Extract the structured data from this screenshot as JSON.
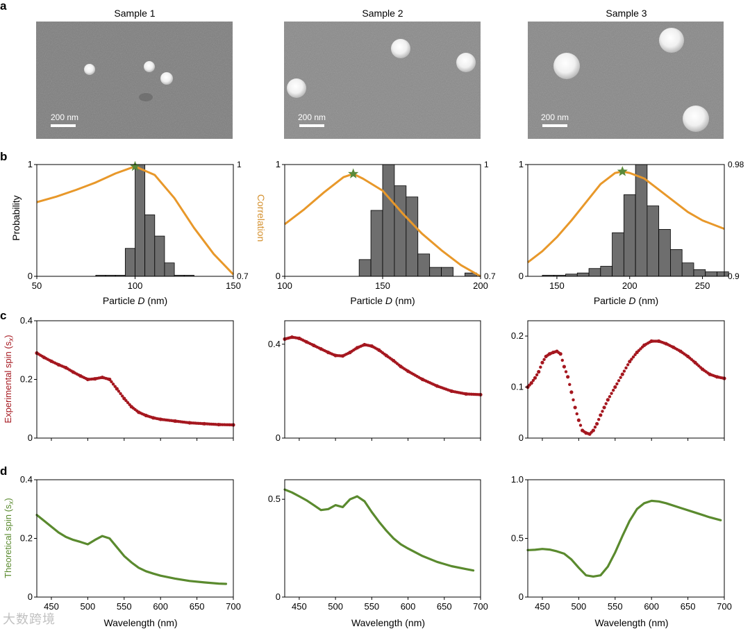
{
  "figure": {
    "panel_labels": [
      "a",
      "b",
      "c",
      "d"
    ],
    "samples": [
      "Sample 1",
      "Sample 2",
      "Sample 3"
    ],
    "scale_bar": "200 nm",
    "b_ylabel_left": "Probability",
    "b_ylabel_right": "Correlation",
    "b_xlabel_pre": "Particle ",
    "b_xlabel_var": "D",
    "b_xlabel_post": " (nm)",
    "c_ylabel": "Experimental spin (s",
    "d_ylabel": "Theoretical spin (s",
    "spin_sub": "x",
    "spin_close": ")",
    "wl_xlabel": "Wavelength (nm)",
    "watermark": "大数跨境"
  },
  "colors": {
    "orange": "#E8982A",
    "bar_fill": "#6E6E6E",
    "star": "#5A8A3A",
    "red": "#A5171F",
    "green": "#5A8A2E",
    "sem_bg": "#7E7E7E",
    "correlation_label": "#D4902E"
  },
  "chart_data": [
    {
      "type": "bar",
      "panel": "b",
      "sample": "Sample 1",
      "xlim": [
        50,
        150
      ],
      "ylim": [
        0,
        1
      ],
      "xticks": [
        50,
        100,
        150
      ],
      "yticks": [
        0,
        1
      ],
      "right_ticks": [
        "0.7",
        "1"
      ],
      "right_lim": [
        0.7,
        1.0
      ],
      "bin_width": 5,
      "bins": [
        [
          80,
          0.01
        ],
        [
          85,
          0.01
        ],
        [
          90,
          0.01
        ],
        [
          95,
          0.25
        ],
        [
          100,
          1.0
        ],
        [
          105,
          0.55
        ],
        [
          110,
          0.36
        ],
        [
          115,
          0.12
        ],
        [
          120,
          0.01
        ],
        [
          125,
          0.01
        ]
      ],
      "correlation": [
        [
          50,
          0.899
        ],
        [
          60,
          0.914
        ],
        [
          70,
          0.932
        ],
        [
          80,
          0.952
        ],
        [
          90,
          0.976
        ],
        [
          100,
          0.995
        ],
        [
          110,
          0.972
        ],
        [
          120,
          0.91
        ],
        [
          130,
          0.83
        ],
        [
          140,
          0.76
        ],
        [
          150,
          0.705
        ]
      ],
      "star": [
        100,
        0.995
      ]
    },
    {
      "type": "bar",
      "panel": "b",
      "sample": "Sample 2",
      "xlim": [
        100,
        200
      ],
      "ylim": [
        0,
        1
      ],
      "xticks": [
        100,
        150,
        200
      ],
      "yticks": [
        0,
        1
      ],
      "right_ticks": [
        "0.7",
        "1"
      ],
      "right_lim": [
        0.7,
        1.0
      ],
      "bin_width": 6,
      "bins": [
        [
          138,
          0.15
        ],
        [
          144,
          0.59
        ],
        [
          150,
          1.0
        ],
        [
          156,
          0.81
        ],
        [
          162,
          0.71
        ],
        [
          168,
          0.2
        ],
        [
          174,
          0.08
        ],
        [
          180,
          0.08
        ],
        [
          186,
          0.0
        ],
        [
          192,
          0.03
        ]
      ],
      "correlation": [
        [
          100,
          0.84
        ],
        [
          110,
          0.88
        ],
        [
          120,
          0.925
        ],
        [
          130,
          0.966
        ],
        [
          135,
          0.975
        ],
        [
          140,
          0.962
        ],
        [
          150,
          0.93
        ],
        [
          160,
          0.87
        ],
        [
          170,
          0.815
        ],
        [
          180,
          0.77
        ],
        [
          190,
          0.73
        ],
        [
          200,
          0.7
        ]
      ],
      "star": [
        135,
        0.975
      ]
    },
    {
      "type": "bar",
      "panel": "b",
      "sample": "Sample 3",
      "xlim": [
        130,
        265
      ],
      "ylim": [
        0,
        1
      ],
      "xticks": [
        150,
        200,
        250
      ],
      "yticks": [
        0,
        1
      ],
      "right_ticks": [
        "0.9",
        "0.98"
      ],
      "right_lim": [
        0.9,
        0.98
      ],
      "bin_width": 8,
      "bins": [
        [
          140,
          0.01
        ],
        [
          148,
          0.01
        ],
        [
          156,
          0.02
        ],
        [
          164,
          0.03
        ],
        [
          172,
          0.07
        ],
        [
          180,
          0.09
        ],
        [
          188,
          0.39
        ],
        [
          196,
          0.73
        ],
        [
          204,
          1.0
        ],
        [
          212,
          0.63
        ],
        [
          220,
          0.42
        ],
        [
          228,
          0.24
        ],
        [
          236,
          0.12
        ],
        [
          244,
          0.06
        ],
        [
          252,
          0.04
        ],
        [
          260,
          0.04
        ]
      ],
      "correlation": [
        [
          130,
          0.91
        ],
        [
          140,
          0.918
        ],
        [
          150,
          0.928
        ],
        [
          160,
          0.94
        ],
        [
          170,
          0.953
        ],
        [
          180,
          0.966
        ],
        [
          190,
          0.974
        ],
        [
          195,
          0.975
        ],
        [
          200,
          0.974
        ],
        [
          210,
          0.97
        ],
        [
          220,
          0.962
        ],
        [
          230,
          0.954
        ],
        [
          240,
          0.946
        ],
        [
          250,
          0.94
        ],
        [
          265,
          0.934
        ]
      ],
      "star": [
        195,
        0.975
      ]
    },
    {
      "type": "scatter",
      "panel": "c",
      "sample": "Sample 1",
      "xlim": [
        430,
        700
      ],
      "ylim": [
        0,
        0.4
      ],
      "yticks": [
        0,
        0.2,
        0.4
      ],
      "ytick_labels": [
        "0",
        "0.2",
        "0.4"
      ],
      "points": [
        [
          430,
          0.29
        ],
        [
          440,
          0.275
        ],
        [
          450,
          0.262
        ],
        [
          460,
          0.25
        ],
        [
          470,
          0.24
        ],
        [
          480,
          0.225
        ],
        [
          490,
          0.212
        ],
        [
          500,
          0.2
        ],
        [
          510,
          0.202
        ],
        [
          520,
          0.207
        ],
        [
          530,
          0.2
        ],
        [
          540,
          0.168
        ],
        [
          550,
          0.135
        ],
        [
          560,
          0.107
        ],
        [
          570,
          0.088
        ],
        [
          580,
          0.077
        ],
        [
          590,
          0.069
        ],
        [
          600,
          0.064
        ],
        [
          620,
          0.058
        ],
        [
          640,
          0.052
        ],
        [
          660,
          0.049
        ],
        [
          680,
          0.046
        ],
        [
          700,
          0.045
        ]
      ]
    },
    {
      "type": "scatter",
      "panel": "c",
      "sample": "Sample 2",
      "xlim": [
        430,
        700
      ],
      "ylim": [
        0,
        0.5
      ],
      "yticks": [
        0,
        0.4
      ],
      "ytick_labels": [
        "0",
        "0.4"
      ],
      "points": [
        [
          430,
          0.422
        ],
        [
          440,
          0.43
        ],
        [
          450,
          0.425
        ],
        [
          460,
          0.41
        ],
        [
          470,
          0.395
        ],
        [
          480,
          0.38
        ],
        [
          490,
          0.365
        ],
        [
          500,
          0.352
        ],
        [
          510,
          0.35
        ],
        [
          520,
          0.365
        ],
        [
          530,
          0.385
        ],
        [
          540,
          0.398
        ],
        [
          550,
          0.392
        ],
        [
          560,
          0.375
        ],
        [
          570,
          0.352
        ],
        [
          580,
          0.33
        ],
        [
          590,
          0.305
        ],
        [
          600,
          0.285
        ],
        [
          620,
          0.25
        ],
        [
          640,
          0.222
        ],
        [
          660,
          0.2
        ],
        [
          680,
          0.188
        ],
        [
          700,
          0.185
        ]
      ]
    },
    {
      "type": "scatter",
      "panel": "c",
      "sample": "Sample 3",
      "xlim": [
        430,
        700
      ],
      "ylim": [
        0,
        0.23
      ],
      "yticks": [
        0,
        0.1,
        0.2
      ],
      "ytick_labels": [
        "0",
        "0.1",
        "0.2"
      ],
      "points": [
        [
          430,
          0.1
        ],
        [
          435,
          0.108
        ],
        [
          440,
          0.118
        ],
        [
          445,
          0.13
        ],
        [
          450,
          0.148
        ],
        [
          455,
          0.16
        ],
        [
          460,
          0.165
        ],
        [
          465,
          0.168
        ],
        [
          470,
          0.17
        ],
        [
          475,
          0.165
        ],
        [
          480,
          0.14
        ],
        [
          485,
          0.12
        ],
        [
          490,
          0.09
        ],
        [
          495,
          0.06
        ],
        [
          500,
          0.035
        ],
        [
          505,
          0.015
        ],
        [
          510,
          0.01
        ],
        [
          515,
          0.008
        ],
        [
          520,
          0.015
        ],
        [
          525,
          0.028
        ],
        [
          530,
          0.045
        ],
        [
          535,
          0.06
        ],
        [
          540,
          0.075
        ],
        [
          550,
          0.1
        ],
        [
          560,
          0.125
        ],
        [
          570,
          0.15
        ],
        [
          580,
          0.168
        ],
        [
          590,
          0.182
        ],
        [
          600,
          0.19
        ],
        [
          610,
          0.19
        ],
        [
          620,
          0.185
        ],
        [
          630,
          0.178
        ],
        [
          640,
          0.17
        ],
        [
          650,
          0.16
        ],
        [
          660,
          0.148
        ],
        [
          670,
          0.135
        ],
        [
          680,
          0.125
        ],
        [
          690,
          0.12
        ],
        [
          700,
          0.117
        ]
      ]
    },
    {
      "type": "line",
      "panel": "d",
      "sample": "Sample 1",
      "xlim": [
        430,
        700
      ],
      "ylim": [
        0,
        0.4
      ],
      "xticks": [
        450,
        500,
        550,
        600,
        650,
        700
      ],
      "yticks": [
        0,
        0.2,
        0.4
      ],
      "ytick_labels": [
        "0",
        "0.2",
        "0.4"
      ],
      "points": [
        [
          430,
          0.28
        ],
        [
          440,
          0.26
        ],
        [
          450,
          0.24
        ],
        [
          460,
          0.22
        ],
        [
          470,
          0.205
        ],
        [
          480,
          0.195
        ],
        [
          490,
          0.188
        ],
        [
          500,
          0.18
        ],
        [
          510,
          0.195
        ],
        [
          520,
          0.208
        ],
        [
          530,
          0.2
        ],
        [
          540,
          0.17
        ],
        [
          550,
          0.14
        ],
        [
          560,
          0.118
        ],
        [
          570,
          0.1
        ],
        [
          580,
          0.088
        ],
        [
          590,
          0.08
        ],
        [
          600,
          0.073
        ],
        [
          620,
          0.063
        ],
        [
          640,
          0.055
        ],
        [
          660,
          0.05
        ],
        [
          680,
          0.046
        ],
        [
          690,
          0.045
        ]
      ]
    },
    {
      "type": "line",
      "panel": "d",
      "sample": "Sample 2",
      "xlim": [
        430,
        700
      ],
      "ylim": [
        0,
        0.6
      ],
      "xticks": [
        450,
        500,
        550,
        600,
        650,
        700
      ],
      "yticks": [
        0,
        0.5
      ],
      "ytick_labels": [
        "0",
        "0.5"
      ],
      "points": [
        [
          430,
          0.55
        ],
        [
          440,
          0.535
        ],
        [
          450,
          0.515
        ],
        [
          460,
          0.495
        ],
        [
          470,
          0.47
        ],
        [
          480,
          0.445
        ],
        [
          490,
          0.45
        ],
        [
          500,
          0.47
        ],
        [
          510,
          0.46
        ],
        [
          520,
          0.5
        ],
        [
          530,
          0.515
        ],
        [
          540,
          0.49
        ],
        [
          550,
          0.435
        ],
        [
          560,
          0.385
        ],
        [
          570,
          0.34
        ],
        [
          580,
          0.3
        ],
        [
          590,
          0.27
        ],
        [
          600,
          0.248
        ],
        [
          620,
          0.21
        ],
        [
          640,
          0.18
        ],
        [
          660,
          0.158
        ],
        [
          680,
          0.143
        ],
        [
          690,
          0.136
        ]
      ]
    },
    {
      "type": "line",
      "panel": "d",
      "sample": "Sample 3",
      "xlim": [
        430,
        700
      ],
      "ylim": [
        0,
        1.0
      ],
      "xticks": [
        450,
        500,
        550,
        600,
        650,
        700
      ],
      "yticks": [
        0,
        0.5,
        1.0
      ],
      "ytick_labels": [
        "0",
        "0.5",
        "1.0"
      ],
      "points": [
        [
          430,
          0.4
        ],
        [
          440,
          0.403
        ],
        [
          450,
          0.41
        ],
        [
          460,
          0.405
        ],
        [
          470,
          0.39
        ],
        [
          480,
          0.37
        ],
        [
          490,
          0.32
        ],
        [
          500,
          0.25
        ],
        [
          510,
          0.185
        ],
        [
          520,
          0.175
        ],
        [
          530,
          0.185
        ],
        [
          540,
          0.26
        ],
        [
          550,
          0.38
        ],
        [
          560,
          0.52
        ],
        [
          570,
          0.65
        ],
        [
          580,
          0.75
        ],
        [
          590,
          0.8
        ],
        [
          600,
          0.82
        ],
        [
          610,
          0.815
        ],
        [
          620,
          0.8
        ],
        [
          640,
          0.76
        ],
        [
          660,
          0.72
        ],
        [
          680,
          0.68
        ],
        [
          695,
          0.655
        ]
      ]
    }
  ]
}
